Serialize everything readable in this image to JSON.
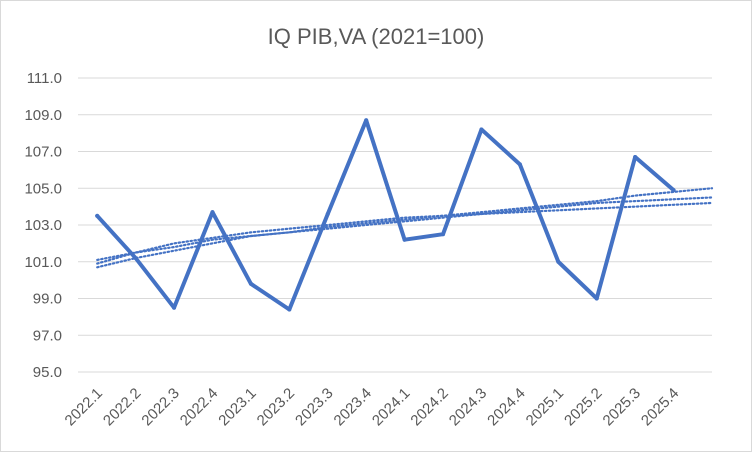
{
  "chart_data": {
    "type": "line",
    "title": "IQ PIB,VA (2021=100)",
    "xlabel": "",
    "ylabel": "",
    "categories": [
      "2022.1",
      "2022.2",
      "2022.3",
      "2022.4",
      "2023.1",
      "2023.2",
      "2023.3",
      "2023.4",
      "2024.1",
      "2024.2",
      "2024.3",
      "2024.4",
      "2025.1",
      "2025.2",
      "2025.3",
      "2025.4"
    ],
    "series": [
      {
        "values": [
          103.5,
          101.2,
          98.5,
          103.7,
          99.8,
          98.4,
          103.6,
          108.7,
          102.2,
          102.5,
          108.2,
          106.3,
          101.0,
          99.0,
          106.7,
          104.9
        ]
      }
    ],
    "trendlines": [
      {
        "style": "dotted",
        "values": [
          100.7,
          101.2,
          101.6,
          102.0,
          102.4,
          102.6,
          102.9,
          103.1,
          103.3,
          103.5,
          103.7,
          103.9,
          104.1,
          104.3,
          104.6,
          104.8,
          105.0
        ]
      },
      {
        "style": "dotted",
        "values": [
          101.1,
          101.5,
          101.8,
          102.2,
          102.4,
          102.6,
          102.8,
          103.0,
          103.2,
          103.4,
          103.6,
          103.8,
          104.0,
          104.2,
          104.3,
          104.4,
          104.5
        ]
      },
      {
        "style": "dotted",
        "values": [
          100.9,
          101.5,
          102.0,
          102.3,
          102.6,
          102.8,
          103.0,
          103.2,
          103.4,
          103.5,
          103.6,
          103.7,
          103.8,
          103.9,
          104.0,
          104.1,
          104.2
        ]
      }
    ],
    "yticks": [
      "95.0",
      "97.0",
      "99.0",
      "101.0",
      "103.0",
      "105.0",
      "107.0",
      "109.0",
      "111.0"
    ],
    "ylim": [
      95,
      111
    ],
    "grid": true,
    "legend": "none",
    "colors": {
      "series": "#4472c4",
      "grid": "#d9d9d9",
      "text": "#595959"
    }
  }
}
